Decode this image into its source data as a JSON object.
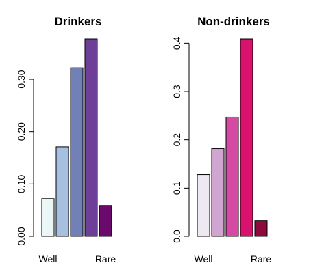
{
  "chart_data": [
    {
      "type": "bar",
      "title": "Drinkers",
      "xlabel": "",
      "ylabel": "",
      "categories": [
        "Well",
        "",
        "",
        "",
        "Rare"
      ],
      "values": [
        0.072,
        0.171,
        0.322,
        0.377,
        0.059
      ],
      "colors": [
        "#ecf6f7",
        "#a8c0e0",
        "#7181b8",
        "#6e3f98",
        "#6a0a6c"
      ],
      "ylim": [
        0,
        0.377
      ],
      "yticks": [
        0.0,
        0.1,
        0.2,
        0.3
      ],
      "ytick_labels": [
        "0.00",
        "0.10",
        "0.20",
        "0.30"
      ],
      "grid": false
    },
    {
      "type": "bar",
      "title": "Non-drinkers",
      "xlabel": "",
      "ylabel": "",
      "categories": [
        "Well",
        "",
        "",
        "",
        "Rare"
      ],
      "values": [
        0.128,
        0.182,
        0.247,
        0.409,
        0.033
      ],
      "colors": [
        "#eee8f3",
        "#d0a6d1",
        "#d64aa3",
        "#d8126d",
        "#8c0b3c"
      ],
      "ylim": [
        0,
        0.409
      ],
      "yticks": [
        0.0,
        0.1,
        0.2,
        0.3,
        0.4
      ],
      "ytick_labels": [
        "0.0",
        "0.1",
        "0.2",
        "0.3",
        "0.4"
      ],
      "grid": false
    }
  ]
}
